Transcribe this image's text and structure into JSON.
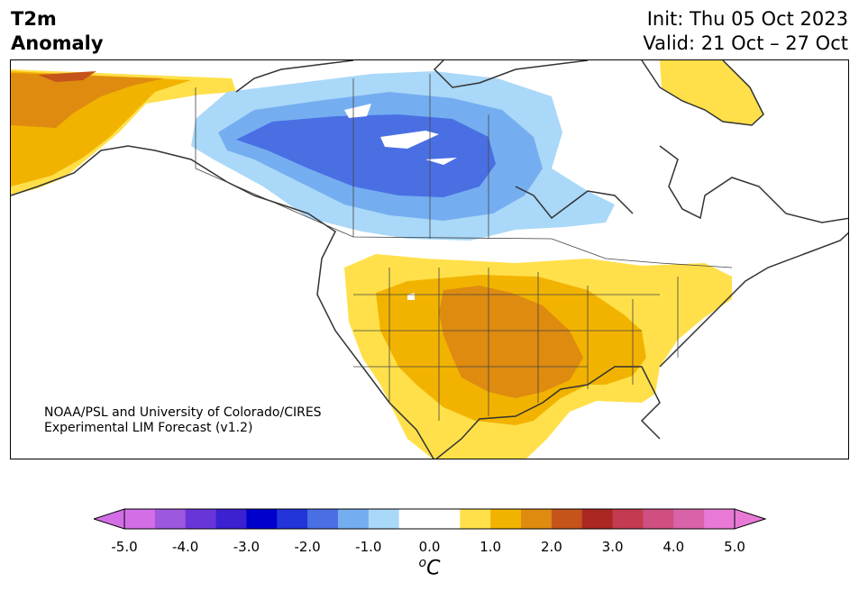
{
  "header": {
    "variable_line1": "T2m",
    "variable_line2": "Anomaly",
    "init": "Init: Thu 05 Oct 2023",
    "valid": "Valid: 21 Oct – 27 Oct"
  },
  "credit": {
    "line1": "NOAA/PSL and University of Colorado/CIRES",
    "line2": "Experimental LIM Forecast (v1.2)"
  },
  "colorbar": {
    "unit_sup": "o",
    "unit_main": "C",
    "ticks": [
      "-5.0",
      "-4.0",
      "-3.0",
      "-2.0",
      "-1.0",
      "0.0",
      "1.0",
      "2.0",
      "3.0",
      "4.0",
      "5.0"
    ],
    "tick_values": [
      -5,
      -4,
      -3,
      -2,
      -1,
      0,
      1,
      2,
      3,
      4,
      5
    ],
    "colors": [
      "#d36ee6",
      "#9e58e0",
      "#6a35d8",
      "#3b21d0",
      "#0000cd",
      "#2135d9",
      "#4a6fe3",
      "#75aef0",
      "#aad8f8",
      "#ffffff",
      "#ffffff",
      "#ffe04a",
      "#f2b300",
      "#de8b10",
      "#c4541a",
      "#ab2722",
      "#c43a50",
      "#cf5080",
      "#d963a8",
      "#e87ad6"
    ],
    "under_color": "#d36ee6",
    "over_color": "#e87ad6"
  }
}
